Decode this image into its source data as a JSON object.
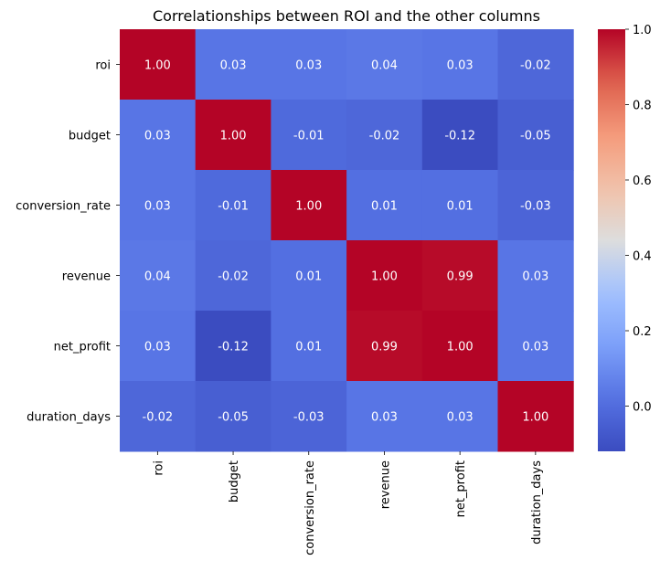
{
  "chart_data": {
    "type": "heatmap",
    "title": "Correlationships between ROI and the other columns",
    "rows": [
      "roi",
      "budget",
      "conversion_rate",
      "revenue",
      "net_profit",
      "duration_days"
    ],
    "columns": [
      "roi",
      "budget",
      "conversion_rate",
      "revenue",
      "net_profit",
      "duration_days"
    ],
    "values": [
      [
        1.0,
        0.03,
        0.03,
        0.04,
        0.03,
        -0.02
      ],
      [
        0.03,
        1.0,
        -0.01,
        -0.02,
        -0.12,
        -0.05
      ],
      [
        0.03,
        -0.01,
        1.0,
        0.01,
        0.01,
        -0.03
      ],
      [
        0.04,
        -0.02,
        0.01,
        1.0,
        0.99,
        0.03
      ],
      [
        0.03,
        -0.12,
        0.01,
        0.99,
        1.0,
        0.03
      ],
      [
        -0.02,
        -0.05,
        -0.03,
        0.03,
        0.03,
        1.0
      ]
    ],
    "cell_labels": [
      [
        "1.00",
        "0.03",
        "0.03",
        "0.04",
        "0.03",
        "-0.02"
      ],
      [
        "0.03",
        "1.00",
        "-0.01",
        "-0.02",
        "-0.12",
        "-0.05"
      ],
      [
        "0.03",
        "-0.01",
        "1.00",
        "0.01",
        "0.01",
        "-0.03"
      ],
      [
        "0.04",
        "-0.02",
        "0.01",
        "1.00",
        "0.99",
        "0.03"
      ],
      [
        "0.03",
        "-0.12",
        "0.01",
        "0.99",
        "1.00",
        "0.03"
      ],
      [
        "-0.02",
        "-0.05",
        "-0.03",
        "0.03",
        "0.03",
        "1.00"
      ]
    ],
    "colormap": "coolwarm",
    "color_range": [
      -0.12,
      1.0
    ],
    "colorbar": {
      "ticks": [
        0.0,
        0.2,
        0.4,
        0.6,
        0.8,
        1.0
      ],
      "tick_labels": [
        "0.0",
        "0.2",
        "0.4",
        "0.6",
        "0.8",
        "1.0"
      ]
    },
    "grid": false
  }
}
